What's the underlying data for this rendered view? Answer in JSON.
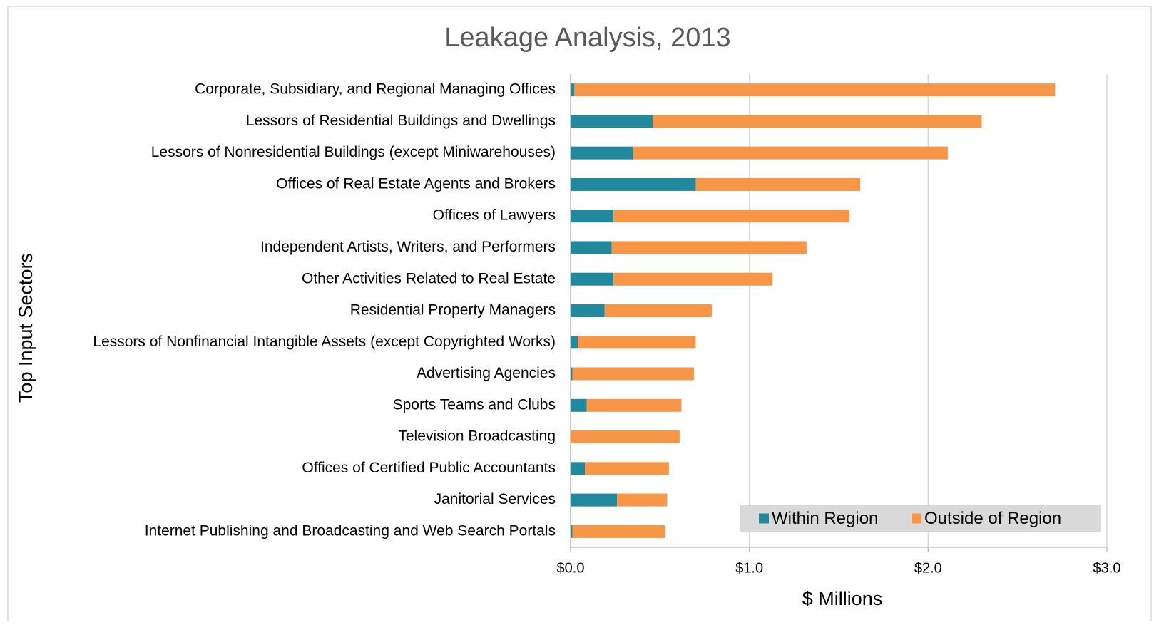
{
  "chart_data": {
    "type": "stacked_bar_horizontal",
    "title": "Leakage Analysis, 2013",
    "x_label": "$ Millions",
    "y_label": "Top Input Sectors",
    "categories": [
      "Corporate, Subsidiary, and Regional Managing Offices",
      "Lessors of Residential Buildings and Dwellings",
      "Lessors of Nonresidential Buildings (except Miniwarehouses)",
      "Offices of Real Estate Agents and Brokers",
      "Offices of Lawyers",
      "Independent Artists, Writers, and Performers",
      "Other Activities Related to Real Estate",
      "Residential Property Managers",
      "Lessors of Nonfinancial Intangible Assets (except Copyrighted Works)",
      "Advertising Agencies",
      "Sports Teams and Clubs",
      "Television Broadcasting",
      "Offices of Certified Public Accountants",
      "Janitorial Services",
      "Internet Publishing and Broadcasting and Web Search Portals"
    ],
    "series": [
      {
        "name": "Within Region",
        "color": "#21899b",
        "values": [
          0.02,
          0.46,
          0.35,
          0.7,
          0.24,
          0.23,
          0.24,
          0.19,
          0.04,
          0.01,
          0.09,
          0,
          0.08,
          0.26,
          0.01
        ]
      },
      {
        "name": "Outside of Region",
        "color": "#f79646",
        "values": [
          2.69,
          1.84,
          1.76,
          0.92,
          1.32,
          1.09,
          0.89,
          0.6,
          0.66,
          0.68,
          0.53,
          0.61,
          0.47,
          0.28,
          0.52
        ]
      }
    ],
    "xlim": [
      0,
      3
    ],
    "xticks": [
      {
        "value": 0,
        "label": "$0.0"
      },
      {
        "value": 1,
        "label": "$1.0"
      },
      {
        "value": 2,
        "label": "$2.0"
      },
      {
        "value": 3,
        "label": "$3.0"
      }
    ],
    "grid": true,
    "legend": "lower right"
  }
}
